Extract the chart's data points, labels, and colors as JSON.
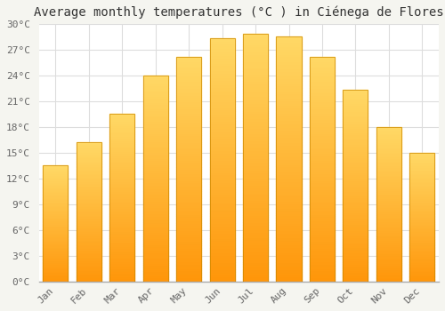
{
  "title": "Average monthly temperatures (°C ) in Ciénega de Flores",
  "months": [
    "Jan",
    "Feb",
    "Mar",
    "Apr",
    "May",
    "Jun",
    "Jul",
    "Aug",
    "Sep",
    "Oct",
    "Nov",
    "Dec"
  ],
  "temperatures": [
    13.5,
    16.2,
    19.5,
    24.0,
    26.2,
    28.3,
    28.8,
    28.5,
    26.2,
    22.3,
    18.0,
    15.0
  ],
  "bar_color_top": "#FFD966",
  "bar_color_bottom": "#E8960A",
  "ylim": [
    0,
    30
  ],
  "yticks": [
    0,
    3,
    6,
    9,
    12,
    15,
    18,
    21,
    24,
    27,
    30
  ],
  "ytick_labels": [
    "0°C",
    "3°C",
    "6°C",
    "9°C",
    "12°C",
    "15°C",
    "18°C",
    "21°C",
    "24°C",
    "27°C",
    "30°C"
  ],
  "background_color": "#ffffff",
  "outer_background": "#f5f5f0",
  "grid_color": "#dddddd",
  "title_fontsize": 10,
  "tick_fontsize": 8,
  "font_family": "monospace",
  "bar_edge_color": "#CC8800",
  "bar_edge_width": 0.5
}
